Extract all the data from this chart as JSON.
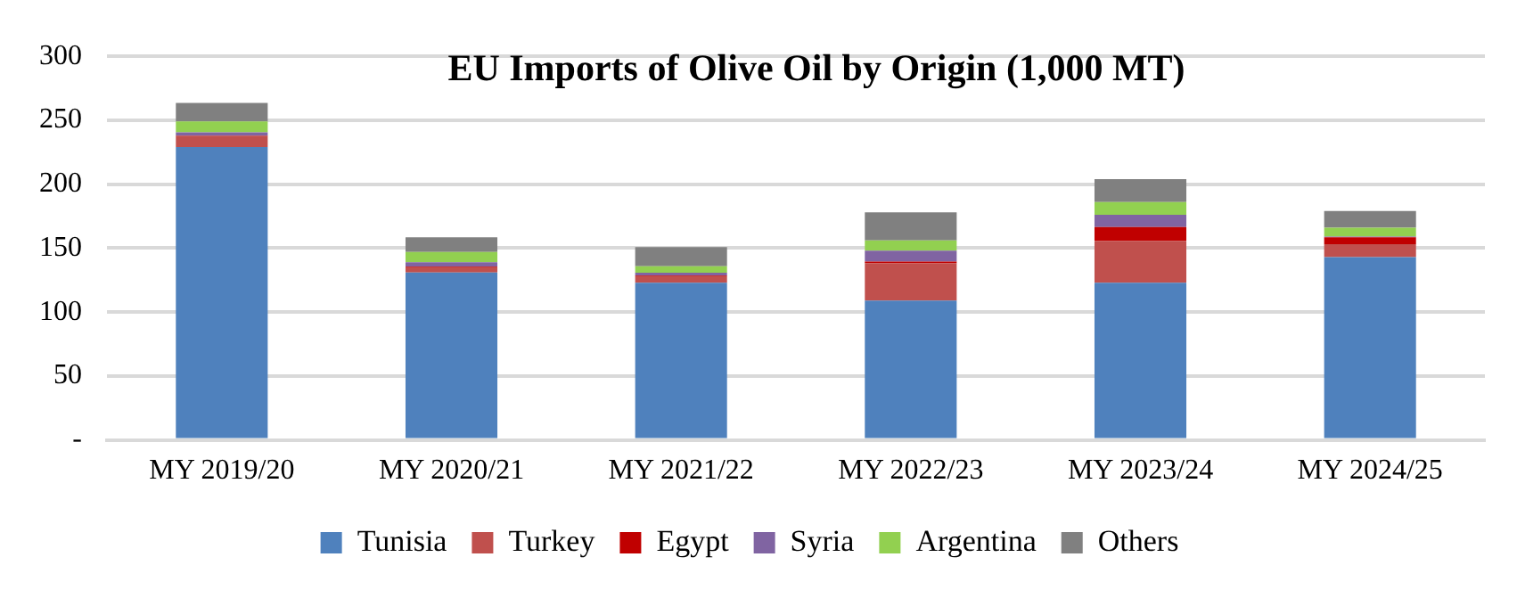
{
  "chart_data": {
    "type": "bar",
    "title": "EU Imports of Olive Oil by Origin (1,000 MT)",
    "stacked": true,
    "categories": [
      "MY 2019/20",
      "MY 2020/21",
      "MY 2021/22",
      "MY 2022/23",
      "MY 2023/24",
      "MY 2024/25"
    ],
    "series": [
      {
        "name": "Tunisia",
        "color": "#4f81bd",
        "values": [
          229,
          131,
          123,
          109,
          123,
          143
        ]
      },
      {
        "name": "Turkey",
        "color": "#c0504d",
        "values": [
          8.5,
          4,
          5,
          29,
          32.5,
          10
        ]
      },
      {
        "name": "Egypt",
        "color": "#c00000",
        "values": [
          0.5,
          0.5,
          0.5,
          1.5,
          11,
          5.5
        ]
      },
      {
        "name": "Syria",
        "color": "#8064a2",
        "values": [
          2.5,
          3.5,
          2.3,
          8.5,
          9.5,
          0.5
        ]
      },
      {
        "name": "Argentina",
        "color": "#92d050",
        "values": [
          8.5,
          8,
          5,
          8,
          10,
          7
        ]
      },
      {
        "name": "Others",
        "color": "#808080",
        "values": [
          14.5,
          11.5,
          15,
          22,
          18,
          13
        ]
      }
    ],
    "ylim": [
      0,
      300
    ],
    "yticks": [
      {
        "value": 0,
        "label": "-"
      },
      50,
      100,
      150,
      200,
      250,
      300
    ],
    "grid": "y",
    "legend": "bottom"
  }
}
